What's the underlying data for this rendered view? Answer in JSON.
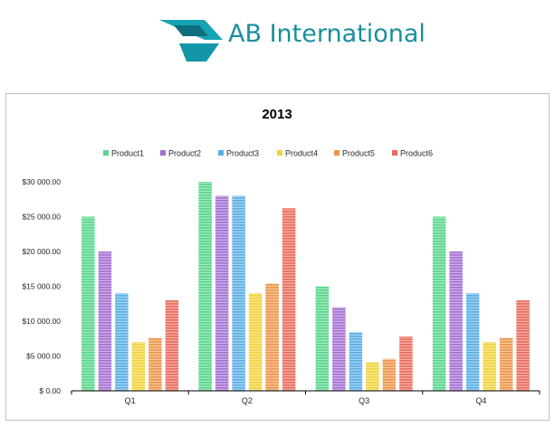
{
  "header": {
    "brand_name": "AB International"
  },
  "colors": {
    "brand": "#1a8e9c",
    "Product1": "#57d68a",
    "Product2": "#a470d2",
    "Product3": "#5aaee6",
    "Product4": "#f1d33a",
    "Product5": "#ee9549",
    "Product6": "#ea6b5b"
  },
  "chart_data": {
    "type": "bar",
    "title": "2013",
    "xlabel": "",
    "ylabel": "",
    "categories": [
      "Q1",
      "Q2",
      "Q3",
      "Q4"
    ],
    "ylim": [
      0,
      30000
    ],
    "y_ticks": [
      "$ 0.00",
      "$5 000.00",
      "$10 000.00",
      "$15 000.00",
      "$20 000.00",
      "$25 000.00",
      "$30 000.00"
    ],
    "y_tick_values": [
      0,
      5000,
      10000,
      15000,
      20000,
      25000,
      30000
    ],
    "grid": false,
    "legend_position": "top",
    "series": [
      {
        "name": "Product1",
        "values": [
          25000,
          30000,
          15000,
          25000
        ]
      },
      {
        "name": "Product2",
        "values": [
          20000,
          28000,
          12000,
          20000
        ]
      },
      {
        "name": "Product3",
        "values": [
          14000,
          28000,
          8400,
          14000
        ]
      },
      {
        "name": "Product4",
        "values": [
          7000,
          14000,
          4100,
          7000
        ]
      },
      {
        "name": "Product5",
        "values": [
          7600,
          15400,
          4600,
          7600
        ]
      },
      {
        "name": "Product6",
        "values": [
          13000,
          26200,
          7800,
          13000
        ]
      }
    ]
  }
}
